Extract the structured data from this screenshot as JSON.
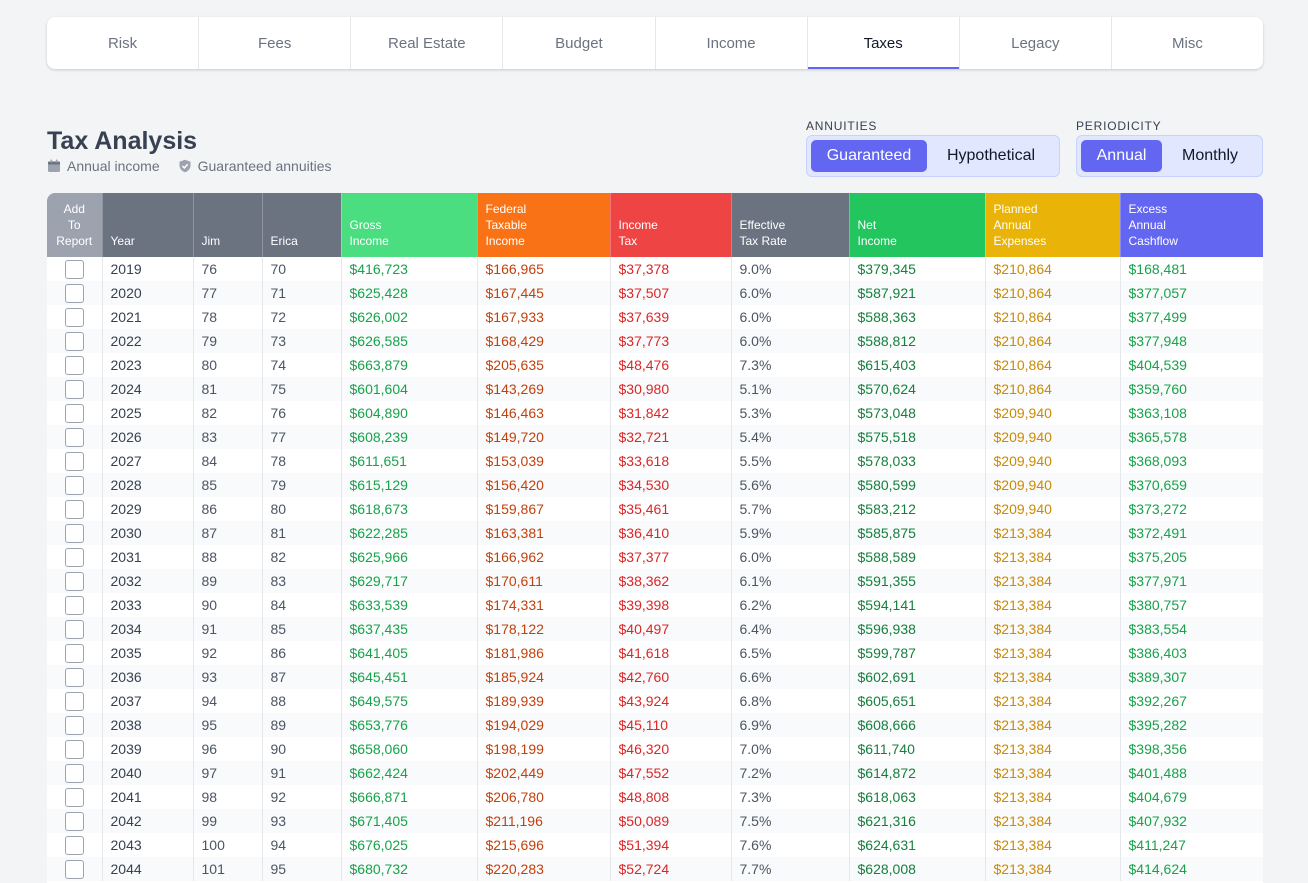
{
  "tabs": [
    {
      "label": "Risk",
      "active": false
    },
    {
      "label": "Fees",
      "active": false
    },
    {
      "label": "Real Estate",
      "active": false
    },
    {
      "label": "Budget",
      "active": false
    },
    {
      "label": "Income",
      "active": false
    },
    {
      "label": "Taxes",
      "active": true
    },
    {
      "label": "Legacy",
      "active": false
    },
    {
      "label": "Misc",
      "active": false
    }
  ],
  "header": {
    "title": "Tax Analysis",
    "info_income": "Annual income",
    "info_annuities": "Guaranteed annuities"
  },
  "annuities": {
    "label": "ANNUITIES",
    "options": [
      "Guaranteed",
      "Hypothetical"
    ],
    "selected": "Guaranteed"
  },
  "periodicity": {
    "label": "PERIODICITY",
    "options": [
      "Annual",
      "Monthly"
    ],
    "selected": "Annual"
  },
  "table": {
    "columns": [
      {
        "key": "add",
        "label": "Add\nTo\nReport"
      },
      {
        "key": "year",
        "label": "Year"
      },
      {
        "key": "jim",
        "label": "Jim"
      },
      {
        "key": "erica",
        "label": "Erica"
      },
      {
        "key": "gross",
        "label": "Gross\nIncome"
      },
      {
        "key": "fed",
        "label": "Federal\nTaxable\nIncome"
      },
      {
        "key": "tax",
        "label": "Income\nTax"
      },
      {
        "key": "rate",
        "label": "Effective\nTax Rate"
      },
      {
        "key": "net",
        "label": "Net\nIncome"
      },
      {
        "key": "planned",
        "label": "Planned\nAnnual\nExpenses"
      },
      {
        "key": "excess",
        "label": "Excess\nAnnual\nCashflow"
      }
    ],
    "rows": [
      [
        "2019",
        "76",
        "70",
        "$416,723",
        "$166,965",
        "$37,378",
        "9.0%",
        "$379,345",
        "$210,864",
        "$168,481"
      ],
      [
        "2020",
        "77",
        "71",
        "$625,428",
        "$167,445",
        "$37,507",
        "6.0%",
        "$587,921",
        "$210,864",
        "$377,057"
      ],
      [
        "2021",
        "78",
        "72",
        "$626,002",
        "$167,933",
        "$37,639",
        "6.0%",
        "$588,363",
        "$210,864",
        "$377,499"
      ],
      [
        "2022",
        "79",
        "73",
        "$626,585",
        "$168,429",
        "$37,773",
        "6.0%",
        "$588,812",
        "$210,864",
        "$377,948"
      ],
      [
        "2023",
        "80",
        "74",
        "$663,879",
        "$205,635",
        "$48,476",
        "7.3%",
        "$615,403",
        "$210,864",
        "$404,539"
      ],
      [
        "2024",
        "81",
        "75",
        "$601,604",
        "$143,269",
        "$30,980",
        "5.1%",
        "$570,624",
        "$210,864",
        "$359,760"
      ],
      [
        "2025",
        "82",
        "76",
        "$604,890",
        "$146,463",
        "$31,842",
        "5.3%",
        "$573,048",
        "$209,940",
        "$363,108"
      ],
      [
        "2026",
        "83",
        "77",
        "$608,239",
        "$149,720",
        "$32,721",
        "5.4%",
        "$575,518",
        "$209,940",
        "$365,578"
      ],
      [
        "2027",
        "84",
        "78",
        "$611,651",
        "$153,039",
        "$33,618",
        "5.5%",
        "$578,033",
        "$209,940",
        "$368,093"
      ],
      [
        "2028",
        "85",
        "79",
        "$615,129",
        "$156,420",
        "$34,530",
        "5.6%",
        "$580,599",
        "$209,940",
        "$370,659"
      ],
      [
        "2029",
        "86",
        "80",
        "$618,673",
        "$159,867",
        "$35,461",
        "5.7%",
        "$583,212",
        "$209,940",
        "$373,272"
      ],
      [
        "2030",
        "87",
        "81",
        "$622,285",
        "$163,381",
        "$36,410",
        "5.9%",
        "$585,875",
        "$213,384",
        "$372,491"
      ],
      [
        "2031",
        "88",
        "82",
        "$625,966",
        "$166,962",
        "$37,377",
        "6.0%",
        "$588,589",
        "$213,384",
        "$375,205"
      ],
      [
        "2032",
        "89",
        "83",
        "$629,717",
        "$170,611",
        "$38,362",
        "6.1%",
        "$591,355",
        "$213,384",
        "$377,971"
      ],
      [
        "2033",
        "90",
        "84",
        "$633,539",
        "$174,331",
        "$39,398",
        "6.2%",
        "$594,141",
        "$213,384",
        "$380,757"
      ],
      [
        "2034",
        "91",
        "85",
        "$637,435",
        "$178,122",
        "$40,497",
        "6.4%",
        "$596,938",
        "$213,384",
        "$383,554"
      ],
      [
        "2035",
        "92",
        "86",
        "$641,405",
        "$181,986",
        "$41,618",
        "6.5%",
        "$599,787",
        "$213,384",
        "$386,403"
      ],
      [
        "2036",
        "93",
        "87",
        "$645,451",
        "$185,924",
        "$42,760",
        "6.6%",
        "$602,691",
        "$213,384",
        "$389,307"
      ],
      [
        "2037",
        "94",
        "88",
        "$649,575",
        "$189,939",
        "$43,924",
        "6.8%",
        "$605,651",
        "$213,384",
        "$392,267"
      ],
      [
        "2038",
        "95",
        "89",
        "$653,776",
        "$194,029",
        "$45,110",
        "6.9%",
        "$608,666",
        "$213,384",
        "$395,282"
      ],
      [
        "2039",
        "96",
        "90",
        "$658,060",
        "$198,199",
        "$46,320",
        "7.0%",
        "$611,740",
        "$213,384",
        "$398,356"
      ],
      [
        "2040",
        "97",
        "91",
        "$662,424",
        "$202,449",
        "$47,552",
        "7.2%",
        "$614,872",
        "$213,384",
        "$401,488"
      ],
      [
        "2041",
        "98",
        "92",
        "$666,871",
        "$206,780",
        "$48,808",
        "7.3%",
        "$618,063",
        "$213,384",
        "$404,679"
      ],
      [
        "2042",
        "99",
        "93",
        "$671,405",
        "$211,196",
        "$50,089",
        "7.5%",
        "$621,316",
        "$213,384",
        "$407,932"
      ],
      [
        "2043",
        "100",
        "94",
        "$676,025",
        "$215,696",
        "$51,394",
        "7.6%",
        "$624,631",
        "$213,384",
        "$411,247"
      ],
      [
        "2044",
        "101",
        "95",
        "$680,732",
        "$220,283",
        "$52,724",
        "7.7%",
        "$628,008",
        "$213,384",
        "$414,624"
      ]
    ]
  }
}
